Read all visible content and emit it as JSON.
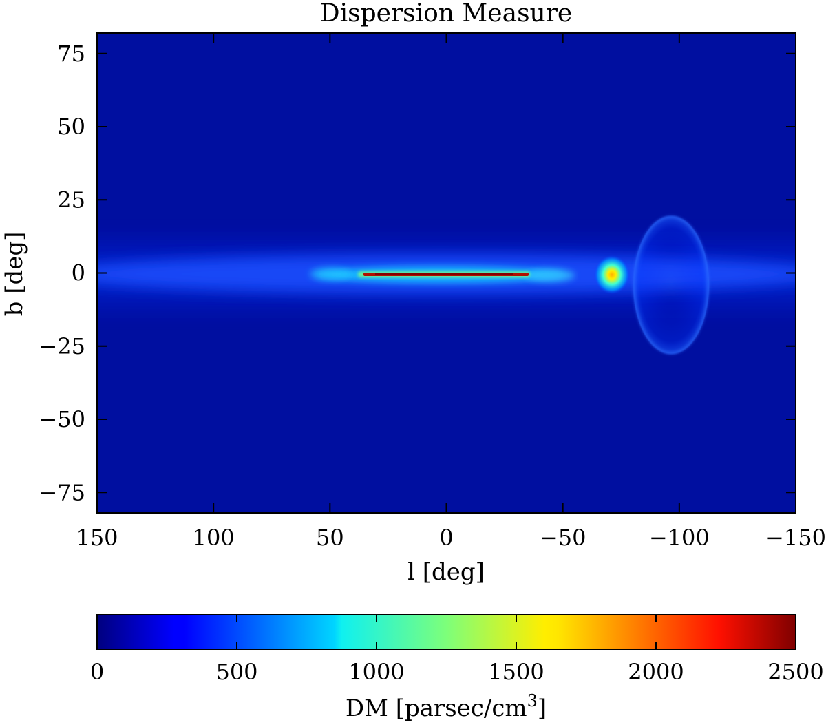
{
  "title": "Dispersion Measure",
  "chart_data": {
    "type": "heatmap",
    "title": "Dispersion Measure",
    "xlabel": "l [deg]",
    "ylabel": "b [deg]",
    "xlim": [
      150,
      -150
    ],
    "ylim": [
      -82,
      82
    ],
    "x_ticks": [
      150,
      100,
      50,
      0,
      -50,
      -100,
      -150
    ],
    "x_tick_labels": [
      "150",
      "100",
      "50",
      "0",
      "−50",
      "−100",
      "−150"
    ],
    "y_ticks": [
      75,
      50,
      25,
      0,
      -25,
      -50,
      -75
    ],
    "y_tick_labels": [
      "75",
      "50",
      "25",
      "0",
      "−25",
      "−50",
      "−75"
    ],
    "colormap": "jet",
    "colorbar": {
      "label": "DM [parsec/cm",
      "label_superscript": "3",
      "label_suffix": "]",
      "range": [
        0,
        2500
      ],
      "ticks": [
        0,
        500,
        1000,
        1500,
        2000,
        2500
      ],
      "tick_labels": [
        "0",
        "500",
        "1000",
        "1500",
        "2000",
        "2500"
      ]
    },
    "features": [
      {
        "name": "galactic-disk-band",
        "l_range": [
          150,
          -150
        ],
        "b_center": 0,
        "b_half_width": 8,
        "dm": 350
      },
      {
        "name": "inner-galaxy-core",
        "l_range": [
          55,
          -52
        ],
        "b_center": 0,
        "b_half_width": 2,
        "dm": 700
      },
      {
        "name": "central-ridge",
        "l_range": [
          35,
          -35
        ],
        "b_center": 0,
        "b_half_width": 0.6,
        "dm": 2400
      },
      {
        "name": "compact-source",
        "l_center": -72,
        "b_center": 0,
        "radius": 5,
        "dm": 1650
      },
      {
        "name": "shell-ellipse",
        "l_center": -100,
        "b_center": -3.5,
        "l_radius": 13,
        "b_radius": 23,
        "dm": 380
      }
    ]
  }
}
